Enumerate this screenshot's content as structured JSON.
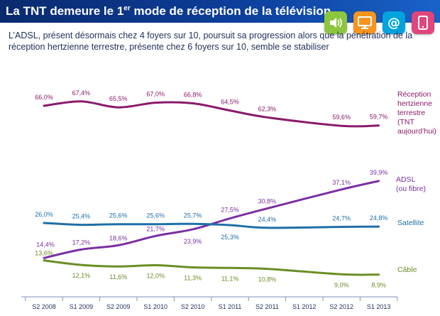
{
  "header": {
    "title_main": "La TNT demeure le 1",
    "title_sup": "er",
    "title_rest": " mode de réception de la télévision"
  },
  "subtitle": "L’ADSL, présent désormais chez 4 foyers sur 10,  poursuit sa progression alors que la pénétration de la réception hertzienne terrestre, présente chez 6 foyers sur 10, semble se stabiliser",
  "icons": [
    {
      "name": "speaker-icon",
      "color": "#8cc63f"
    },
    {
      "name": "monitor-icon",
      "color": "#f7941d"
    },
    {
      "name": "at-sign-icon",
      "color": "#00a3dd"
    },
    {
      "name": "tablet-icon",
      "color": "#e0457b"
    }
  ],
  "chart_data": {
    "type": "line",
    "categories": [
      "S2 2008",
      "S1 2009",
      "S2 2009",
      "S1 2010",
      "S2 2010",
      "S1 2011",
      "S2 2011",
      "S1 2012",
      "S2 2012",
      "S1 2013"
    ],
    "series": [
      {
        "name": "Réception hertzienne terrestre (TNT aujourd’hui)",
        "label_lines": [
          "Réception",
          "hertzienne",
          "terrestre",
          "(TNT",
          "aujourd’hui)"
        ],
        "color": "#8b1a6b",
        "values": [
          66.0,
          67.4,
          65.5,
          67.0,
          66.8,
          64.5,
          62.3,
          null,
          59.6,
          59.7
        ],
        "labels": [
          "66,0%",
          "67,4%",
          "65,5%",
          "67,0%",
          "66,8%",
          "64,5%",
          "62,3%",
          null,
          "59,6%",
          "59,7%"
        ]
      },
      {
        "name": "ADSL (ou fibre)",
        "label_lines": [
          "ADSL",
          "(ou fibre)"
        ],
        "color": "#7b2fa3",
        "values": [
          14.4,
          17.2,
          18.6,
          21.7,
          23.9,
          27.5,
          30.8,
          null,
          37.1,
          39.9
        ],
        "labels": [
          "14,4%",
          "17,2%",
          "18,6%",
          "21,7%",
          "23,9%",
          "27,5%",
          "30,8%",
          null,
          "37,1%",
          "39,9%"
        ]
      },
      {
        "name": "Satellite",
        "label_lines": [
          "Satellite"
        ],
        "color": "#1e6fa8",
        "values": [
          26.0,
          25.4,
          25.6,
          25.6,
          25.7,
          25.3,
          24.4,
          null,
          24.7,
          24.8
        ],
        "labels": [
          "26,0%",
          "25,4%",
          "25,6%",
          "25,6%",
          "25,7%",
          "25,3%",
          "24,4%",
          null,
          "24,7%",
          "24,8%"
        ]
      },
      {
        "name": "Câble",
        "label_lines": [
          "Câble"
        ],
        "color": "#6b8e23",
        "values": [
          13.6,
          12.1,
          11.6,
          12.0,
          11.3,
          11.1,
          10.8,
          null,
          9.0,
          8.9
        ],
        "labels": [
          "13,6%",
          "12,1%",
          "11,6%",
          "12,0%",
          "11,3%",
          "11,1%",
          "10,8%",
          null,
          "9,0%",
          "8,9%"
        ]
      }
    ],
    "grid": false,
    "legend": "right, inline labels at line ends"
  }
}
